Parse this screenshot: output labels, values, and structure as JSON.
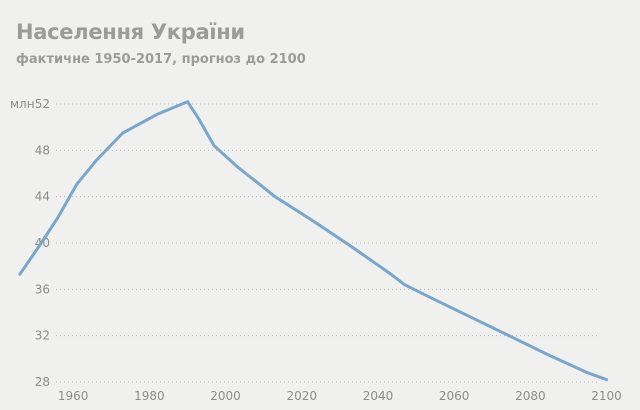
{
  "chart_data": {
    "type": "line",
    "title": "Населення України",
    "subtitle": "фактичне 1950-2017, прогноз до 2100",
    "xlabel": "",
    "ylabel": "",
    "y_unit_label": "млн",
    "xlim": [
      1945,
      2103
    ],
    "ylim": [
      28,
      52
    ],
    "x_ticks": [
      1960,
      1980,
      2000,
      2020,
      2040,
      2060,
      2080,
      2100
    ],
    "y_ticks": [
      28,
      32,
      36,
      40,
      44,
      48,
      52
    ],
    "grid": true,
    "legend": "none",
    "series": [
      {
        "color": "#7aa6cc",
        "x": [
          1946,
          1951,
          1956,
          1961,
          1966,
          1973,
          1982,
          1990,
          1993,
          1997,
          2003,
          2013,
          2023,
          2033,
          2043,
          2047,
          2055,
          2065,
          2075,
          2085,
          2095,
          2100
        ],
        "y": [
          37.3,
          39.7,
          42.2,
          45.1,
          47.1,
          49.5,
          51.1,
          52.2,
          50.7,
          48.4,
          46.6,
          44.0,
          41.9,
          39.7,
          37.4,
          36.4,
          35.1,
          33.5,
          31.9,
          30.3,
          28.8,
          28.2
        ]
      }
    ]
  }
}
